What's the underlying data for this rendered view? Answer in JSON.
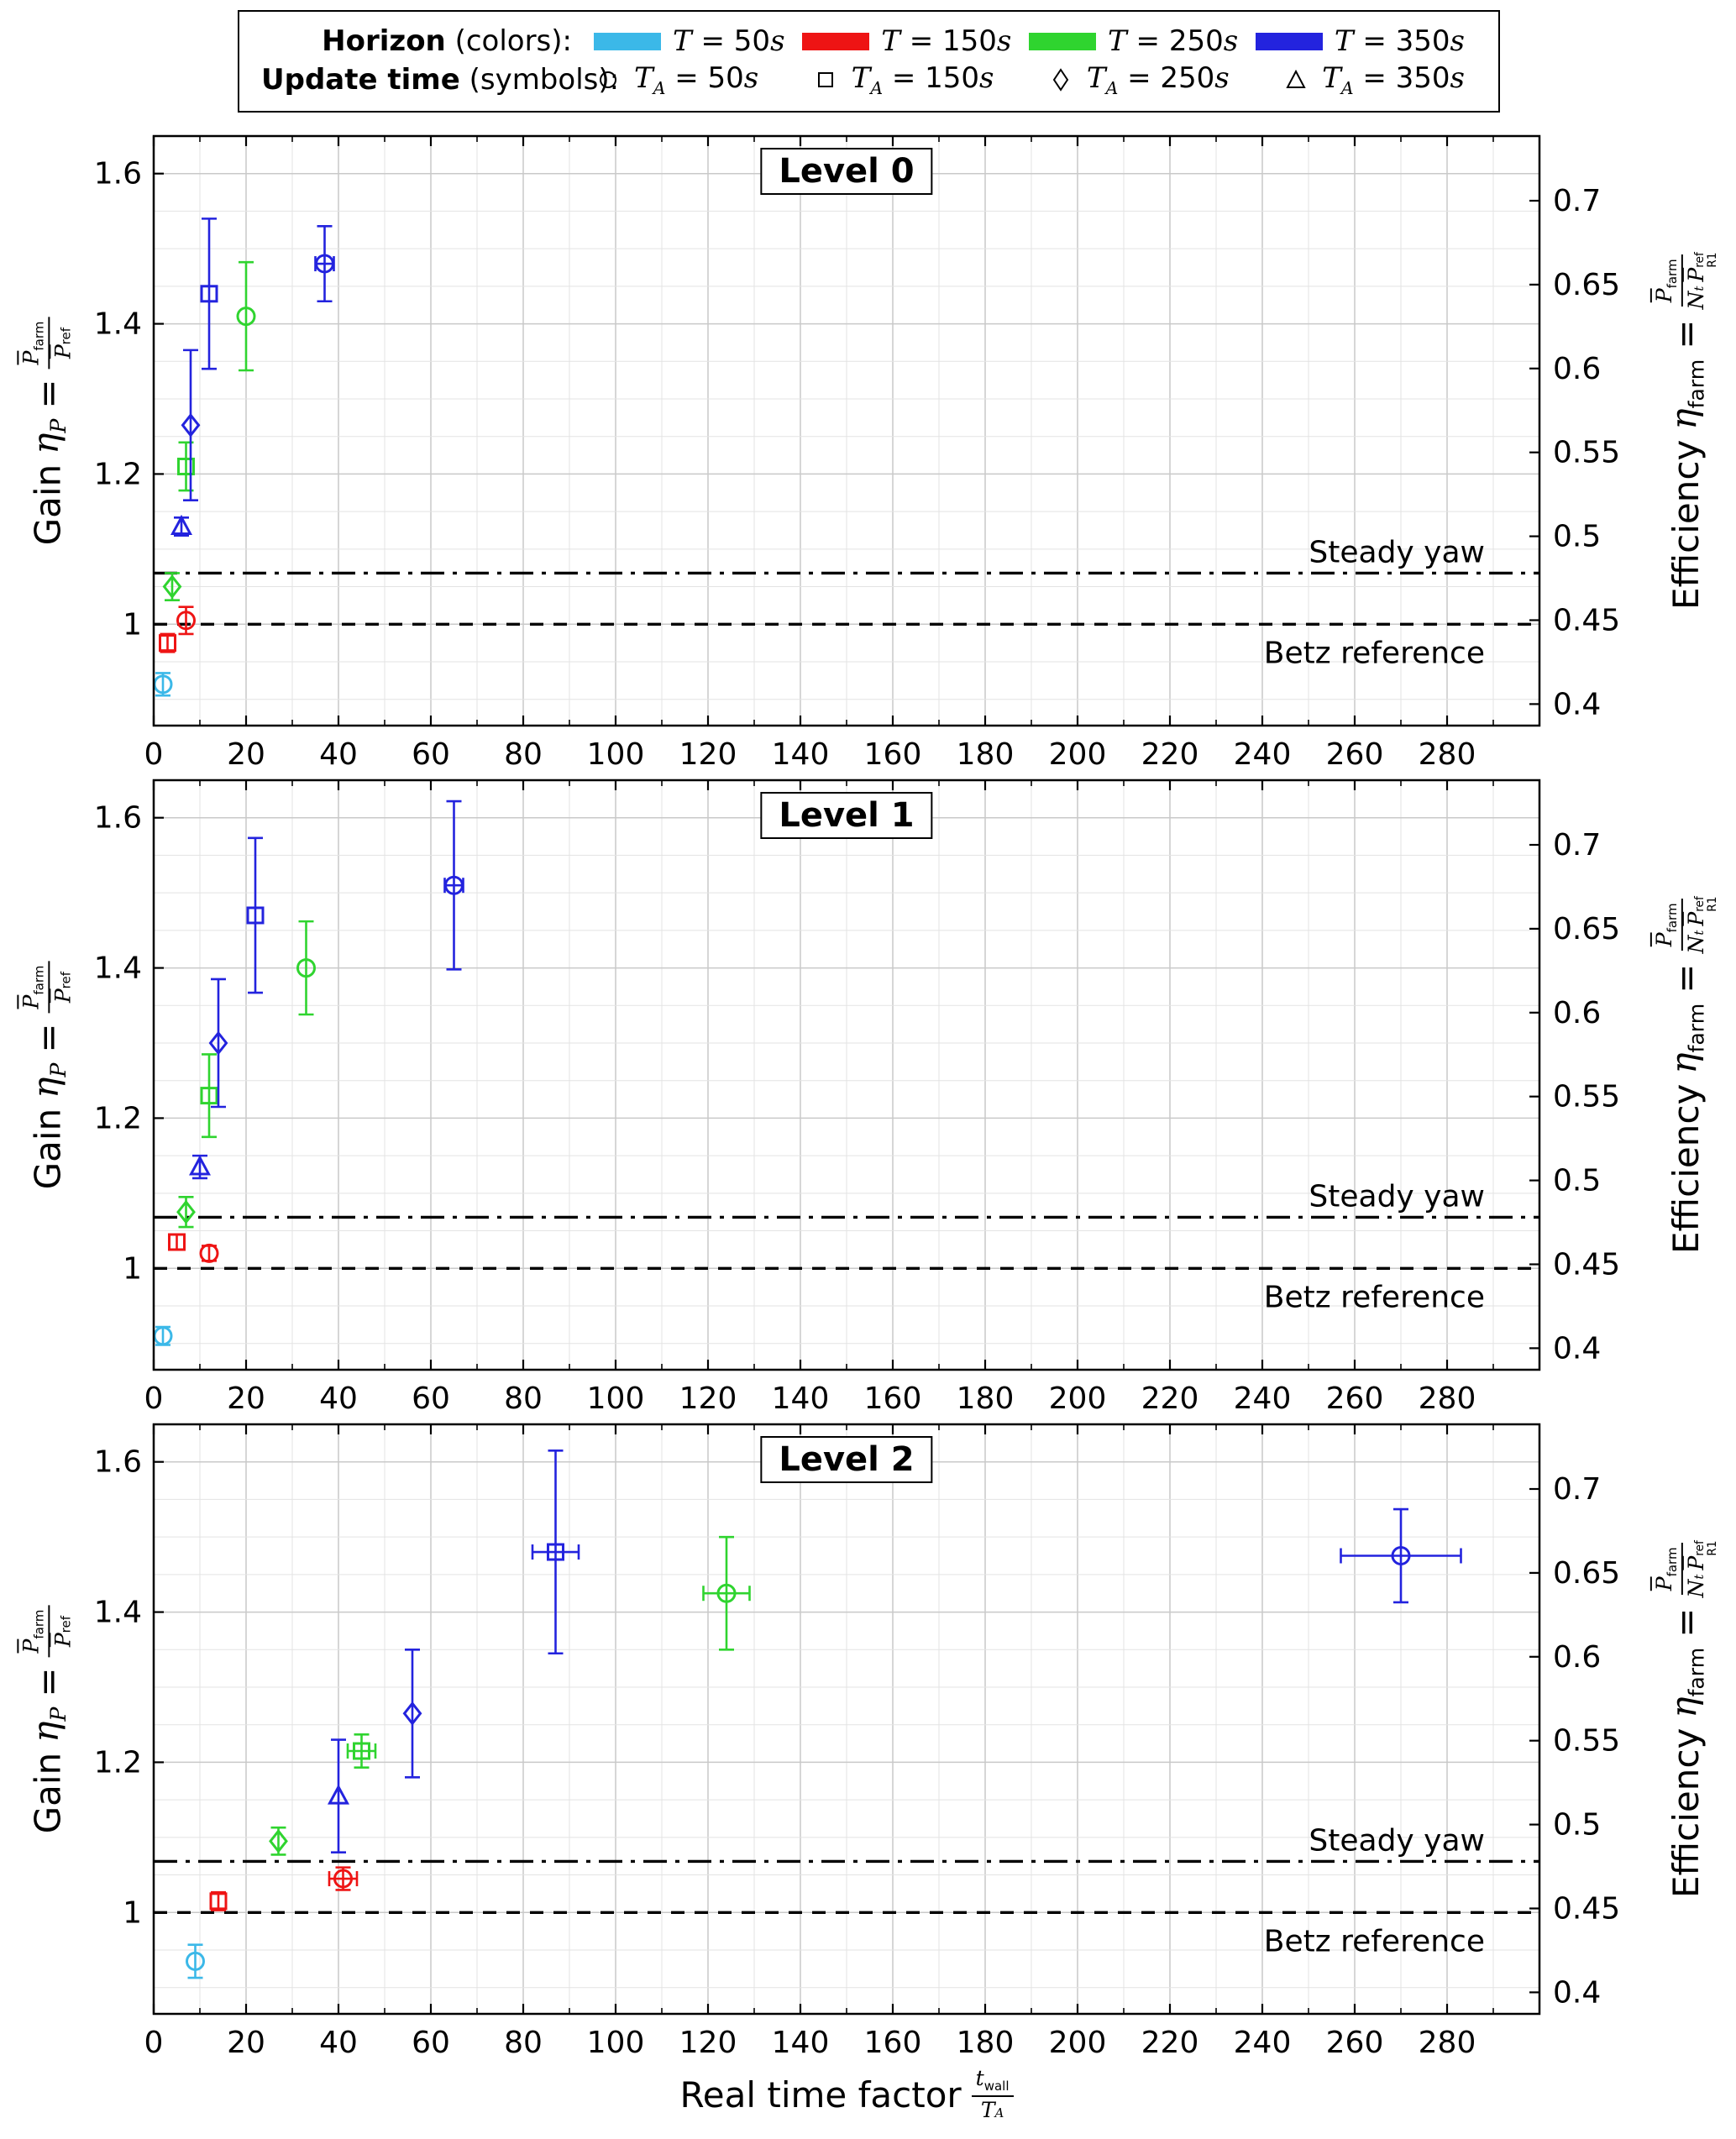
{
  "legend": {
    "eq": " = ",
    "rows": [
      {
        "bold": "Horizon",
        "rest": " (colors):",
        "type": "colors",
        "items": [
          {
            "var": "T",
            "sub": "",
            "value": "50",
            "unit": "s",
            "horizon": "50"
          },
          {
            "var": "T",
            "sub": "",
            "value": "150",
            "unit": "s",
            "horizon": "150"
          },
          {
            "var": "T",
            "sub": "",
            "value": "250",
            "unit": "s",
            "horizon": "250"
          },
          {
            "var": "T",
            "sub": "",
            "value": "350",
            "unit": "s",
            "horizon": "350"
          }
        ]
      },
      {
        "bold": "Update time",
        "rest": " (symbols):",
        "type": "symbols",
        "items": [
          {
            "var": "T",
            "sub": "A",
            "value": "50",
            "unit": "s",
            "symbol": "circle"
          },
          {
            "var": "T",
            "sub": "A",
            "value": "150",
            "unit": "s",
            "symbol": "square"
          },
          {
            "var": "T",
            "sub": "A",
            "value": "250",
            "unit": "s",
            "symbol": "diamond"
          },
          {
            "var": "T",
            "sub": "A",
            "value": "350",
            "unit": "s",
            "symbol": "triangle"
          }
        ]
      }
    ]
  },
  "styles": {
    "horizon_colors": {
      "50": "#3BB8E8",
      "150": "#EE1414",
      "250": "#2FD42F",
      "350": "#2323DE"
    },
    "grid_major": "#c9c9c9",
    "grid_minor": "#e3e3e3",
    "axis_color": "#000000"
  },
  "axis_labels": {
    "left": {
      "prefix": "Gain",
      "sym": "η",
      "sym_sub": "P",
      "eq": "=",
      "num_main": "P",
      "num_sub": "farm",
      "den_main": "P",
      "den_sup": "ref"
    },
    "right": {
      "prefix": "Efficiency",
      "sym": "η",
      "sym_sub": "farm",
      "eq": "=",
      "num_main": "P",
      "num_sub": "farm",
      "den_pre": "N",
      "den_pre_sub": "t",
      "den_main": "P",
      "den_sup": "ref",
      "den_sub": "R1"
    },
    "bottom": {
      "prefix": "Real time factor",
      "num_main": "t",
      "num_sub": "wall",
      "den_main": "T",
      "den_sub": "A"
    }
  },
  "chart_data": {
    "type": "scatter",
    "x_max": 300,
    "gain_lim": [
      0.865,
      1.65
    ],
    "eff_per_gain": 0.4476,
    "x_ticks": [
      0,
      20,
      40,
      60,
      80,
      100,
      120,
      140,
      160,
      180,
      200,
      220,
      240,
      260,
      280
    ],
    "x_minor_step": 10,
    "gain_ticks": [
      {
        "v": 1,
        "label": "1"
      },
      {
        "v": 1.2,
        "label": "1.2"
      },
      {
        "v": 1.4,
        "label": "1.4"
      },
      {
        "v": 1.6,
        "label": "1.6"
      }
    ],
    "gain_minor_step": 0.05,
    "eff_ticks": [
      {
        "v": 0.4,
        "label": "0.4"
      },
      {
        "v": 0.45,
        "label": "0.45"
      },
      {
        "v": 0.5,
        "label": "0.5"
      },
      {
        "v": 0.55,
        "label": "0.55"
      },
      {
        "v": 0.6,
        "label": "0.6"
      },
      {
        "v": 0.65,
        "label": "0.65"
      },
      {
        "v": 0.7,
        "label": "0.7"
      }
    ],
    "ref_lines": [
      {
        "label": "Steady yaw",
        "gain": 1.068,
        "style": "dashdot",
        "label_pos": "above"
      },
      {
        "label": "Betz reference",
        "gain": 1.0,
        "style": "dashed",
        "label_pos": "below"
      }
    ],
    "panels": [
      {
        "title": "Level 0",
        "points": [
          {
            "horizon": "50",
            "symbol": "circle",
            "x": 2,
            "y": 0.92,
            "yerr": 0.015
          },
          {
            "horizon": "150",
            "symbol": "square",
            "x": 3,
            "y": 0.975,
            "yerr": 0.012
          },
          {
            "horizon": "250",
            "symbol": "diamond",
            "x": 4,
            "y": 1.05,
            "yerr": 0.018
          },
          {
            "horizon": "350",
            "symbol": "triangle",
            "x": 6,
            "y": 1.13,
            "yerr": 0.012
          },
          {
            "horizon": "150",
            "symbol": "circle",
            "x": 7,
            "y": 1.005,
            "yerr": 0.018
          },
          {
            "horizon": "250",
            "symbol": "square",
            "x": 7,
            "y": 1.21,
            "yerr": 0.032
          },
          {
            "horizon": "350",
            "symbol": "diamond",
            "x": 8,
            "y": 1.265,
            "yerr": 0.1
          },
          {
            "horizon": "350",
            "symbol": "square",
            "x": 12,
            "y": 1.44,
            "yerr": 0.1
          },
          {
            "horizon": "250",
            "symbol": "circle",
            "x": 20,
            "y": 1.41,
            "yerr": 0.072
          },
          {
            "horizon": "350",
            "symbol": "circle",
            "x": 37,
            "y": 1.48,
            "yerr": 0.05,
            "xerr": 2
          }
        ]
      },
      {
        "title": "Level 1",
        "points": [
          {
            "horizon": "50",
            "symbol": "circle",
            "x": 2,
            "y": 0.91,
            "yerr": 0.012
          },
          {
            "horizon": "150",
            "symbol": "square",
            "x": 5,
            "y": 1.035,
            "yerr": 0.01
          },
          {
            "horizon": "250",
            "symbol": "diamond",
            "x": 7,
            "y": 1.075,
            "yerr": 0.02
          },
          {
            "horizon": "350",
            "symbol": "triangle",
            "x": 10,
            "y": 1.135,
            "yerr": 0.015
          },
          {
            "horizon": "150",
            "symbol": "circle",
            "x": 12,
            "y": 1.02,
            "yerr": 0.01
          },
          {
            "horizon": "250",
            "symbol": "square",
            "x": 12,
            "y": 1.23,
            "yerr": 0.055
          },
          {
            "horizon": "350",
            "symbol": "diamond",
            "x": 14,
            "y": 1.3,
            "yerr": 0.085
          },
          {
            "horizon": "350",
            "symbol": "square",
            "x": 22,
            "y": 1.47,
            "yerr": 0.103
          },
          {
            "horizon": "250",
            "symbol": "circle",
            "x": 33,
            "y": 1.4,
            "yerr": 0.062
          },
          {
            "horizon": "350",
            "symbol": "circle",
            "x": 65,
            "y": 1.51,
            "yerr": 0.112,
            "xerr": 2
          }
        ]
      },
      {
        "title": "Level 2",
        "points": [
          {
            "horizon": "50",
            "symbol": "circle",
            "x": 9,
            "y": 0.935,
            "yerr": 0.022
          },
          {
            "horizon": "150",
            "symbol": "square",
            "x": 14,
            "y": 1.015,
            "yerr": 0.012
          },
          {
            "horizon": "250",
            "symbol": "diamond",
            "x": 27,
            "y": 1.095,
            "yerr": 0.018
          },
          {
            "horizon": "350",
            "symbol": "triangle",
            "x": 40,
            "y": 1.155,
            "yerr": 0.075
          },
          {
            "horizon": "150",
            "symbol": "circle",
            "x": 41,
            "y": 1.045,
            "yerr": 0.015,
            "xerr": 3
          },
          {
            "horizon": "250",
            "symbol": "square",
            "x": 45,
            "y": 1.215,
            "yerr": 0.022,
            "xerr": 3
          },
          {
            "horizon": "350",
            "symbol": "diamond",
            "x": 56,
            "y": 1.265,
            "yerr": 0.085
          },
          {
            "horizon": "350",
            "symbol": "square",
            "x": 87,
            "y": 1.48,
            "yerr": 0.135,
            "xerr": 5
          },
          {
            "horizon": "250",
            "symbol": "circle",
            "x": 124,
            "y": 1.425,
            "yerr": 0.075,
            "xerr": 5
          },
          {
            "horizon": "350",
            "symbol": "circle",
            "x": 270,
            "y": 1.475,
            "yerr": 0.062,
            "xerr": 13
          }
        ]
      }
    ]
  }
}
